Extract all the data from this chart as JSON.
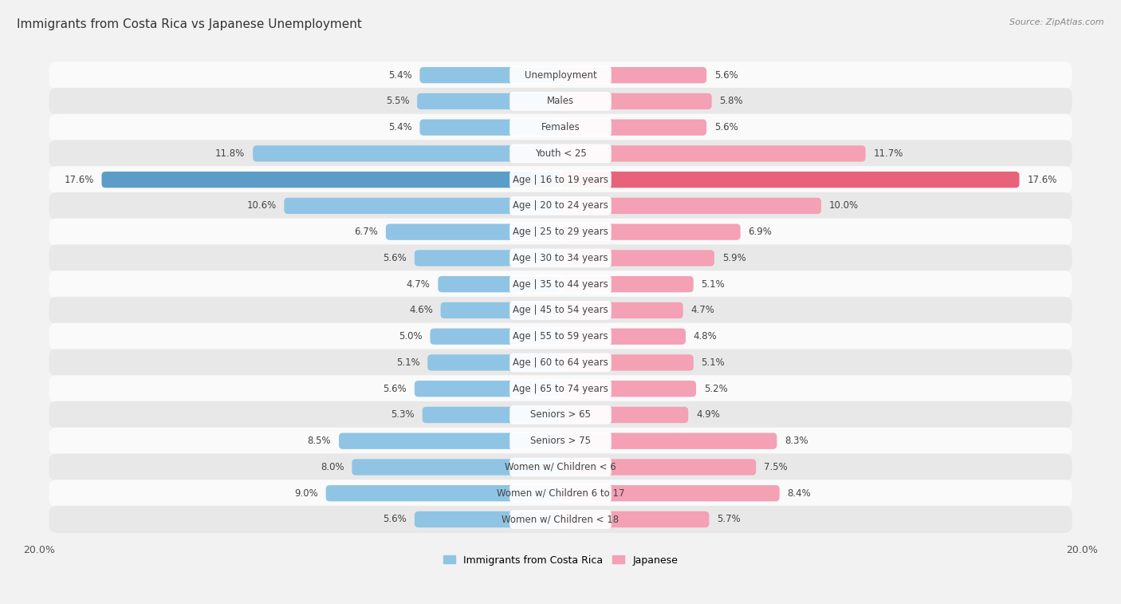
{
  "title": "Immigrants from Costa Rica vs Japanese Unemployment",
  "source": "Source: ZipAtlas.com",
  "categories": [
    "Unemployment",
    "Males",
    "Females",
    "Youth < 25",
    "Age | 16 to 19 years",
    "Age | 20 to 24 years",
    "Age | 25 to 29 years",
    "Age | 30 to 34 years",
    "Age | 35 to 44 years",
    "Age | 45 to 54 years",
    "Age | 55 to 59 years",
    "Age | 60 to 64 years",
    "Age | 65 to 74 years",
    "Seniors > 65",
    "Seniors > 75",
    "Women w/ Children < 6",
    "Women w/ Children 6 to 17",
    "Women w/ Children < 18"
  ],
  "left_values": [
    5.4,
    5.5,
    5.4,
    11.8,
    17.6,
    10.6,
    6.7,
    5.6,
    4.7,
    4.6,
    5.0,
    5.1,
    5.6,
    5.3,
    8.5,
    8.0,
    9.0,
    5.6
  ],
  "right_values": [
    5.6,
    5.8,
    5.6,
    11.7,
    17.6,
    10.0,
    6.9,
    5.9,
    5.1,
    4.7,
    4.8,
    5.1,
    5.2,
    4.9,
    8.3,
    7.5,
    8.4,
    5.7
  ],
  "left_color": "#90c4e4",
  "right_color": "#f4a0b5",
  "highlight_left_color": "#5b9dc8",
  "highlight_right_color": "#e8637a",
  "highlight_row": 4,
  "background_color": "#f2f2f2",
  "row_bg_even": "#fafafa",
  "row_bg_odd": "#e8e8e8",
  "axis_max": 20.0,
  "legend_left": "Immigrants from Costa Rica",
  "legend_right": "Japanese",
  "title_fontsize": 11,
  "label_fontsize": 8.5,
  "value_fontsize": 8.5
}
